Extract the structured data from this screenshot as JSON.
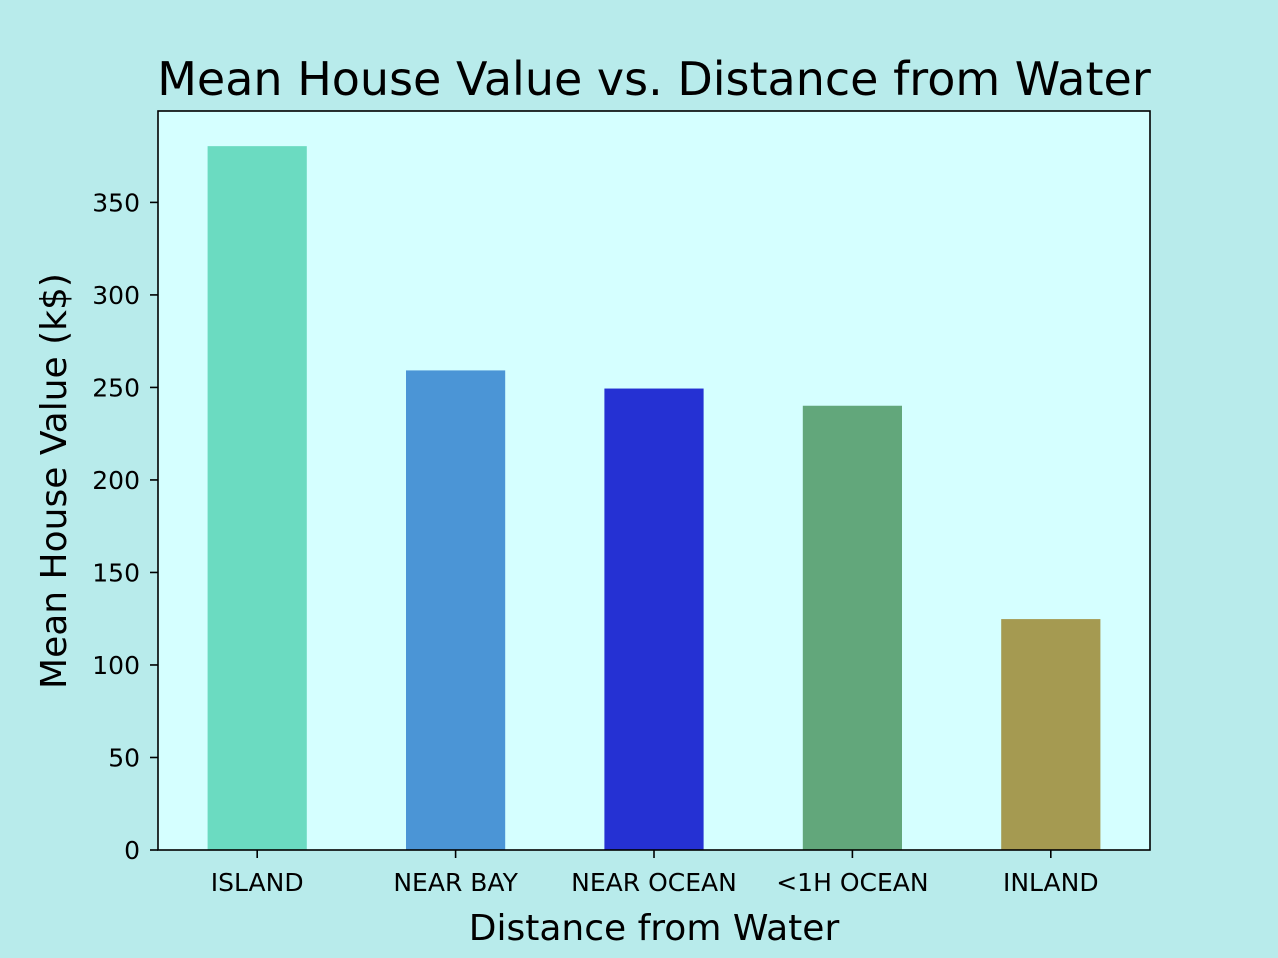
{
  "colors": {
    "figure_background": "#b8ebeb",
    "plot_background": "#d5ffff",
    "axis": "#000000"
  },
  "chart_data": {
    "type": "bar",
    "title": "Mean House Value vs. Distance from Water",
    "xlabel": "Distance from Water",
    "ylabel": "Mean House Value (k$)",
    "categories": [
      "ISLAND",
      "NEAR BAY",
      "NEAR OCEAN",
      "<1H OCEAN",
      "INLAND"
    ],
    "values": [
      380.4,
      259.2,
      249.4,
      240.1,
      124.8
    ],
    "bar_colors": [
      "#6bdbc1",
      "#4b95d6",
      "#2531d3",
      "#62a77b",
      "#a59a51"
    ],
    "ylim": [
      0,
      399.4
    ],
    "yticks": [
      0,
      50,
      100,
      150,
      200,
      250,
      300,
      350
    ],
    "grid": false,
    "legend": "none"
  }
}
